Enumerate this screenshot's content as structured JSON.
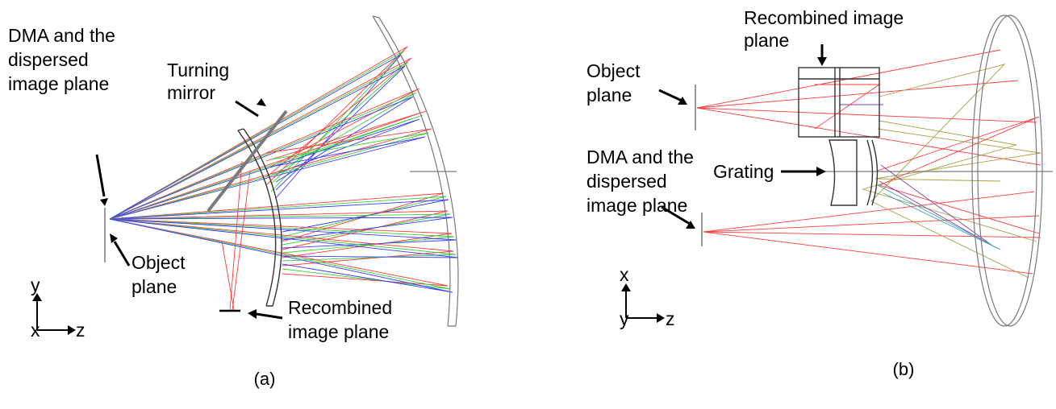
{
  "panel_a": {
    "caption": "(a)",
    "labels": {
      "dma_line1": "DMA and the",
      "dma_line2": "dispersed",
      "dma_line3": "image plane",
      "turning_line1": "Turning",
      "turning_line2": "mirror",
      "object_line1": "Object",
      "object_line2": "plane",
      "recomb_line1": "Recombined",
      "recomb_line2": "image plane"
    },
    "axes": {
      "vertical": "y",
      "horizontal": "z",
      "origin": "x"
    }
  },
  "panel_b": {
    "caption": "(b)",
    "labels": {
      "recomb_line1": "Recombined image",
      "recomb_line2": "plane",
      "object_line1": "Object",
      "object_line2": "plane",
      "grating": "Grating",
      "dma_line1": "DMA and the",
      "dma_line2": "dispersed",
      "dma_line3": "image plane"
    },
    "axes": {
      "vertical": "x",
      "horizontal": "z",
      "origin": "y"
    }
  },
  "colors": {
    "ray_red": "#ff3a3a",
    "ray_green": "#36d13a",
    "ray_blue": "#3a3aff",
    "ray_olive": "#a8a040",
    "ray_purple": "#8040a0",
    "ray_cyan": "#40a0c0",
    "optic_gray": "#7a7a7a"
  }
}
